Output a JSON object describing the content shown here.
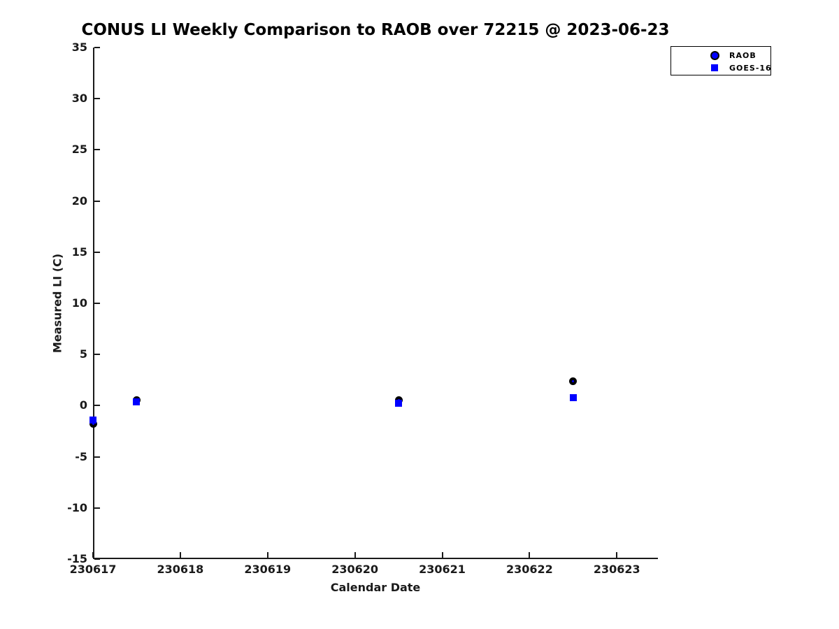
{
  "chart": {
    "title": "CONUS LI Weekly Comparison to RAOB over 72215 @ 2023-06-23",
    "xlabel": "Calendar Date",
    "ylabel": "Measured LI (C)"
  },
  "legend": {
    "entries": [
      {
        "label": "RAOB",
        "marker": "circle-icon"
      },
      {
        "label": "GOES-16",
        "marker": "square-icon"
      }
    ]
  },
  "colors": {
    "marker_fill": "#0000ff",
    "marker_edge": "#000000",
    "axis": "#1a1a1a",
    "text": "#000000"
  },
  "chart_data": {
    "type": "scatter",
    "title": "CONUS LI Weekly Comparison to RAOB over 72215 @ 2023-06-23",
    "xlabel": "Calendar Date",
    "ylabel": "Measured LI (C)",
    "xlim": [
      230617,
      230623.47
    ],
    "ylim": [
      -15,
      35
    ],
    "xticks": [
      230617,
      230618,
      230619,
      230620,
      230621,
      230622,
      230623
    ],
    "yticks": [
      -15,
      -10,
      -5,
      0,
      5,
      10,
      15,
      20,
      25,
      30,
      35
    ],
    "grid": false,
    "legend_position": "top-right",
    "series": [
      {
        "name": "RAOB",
        "marker": "circle",
        "face": "#0000ff",
        "edge": "#000000",
        "points": [
          [
            230617.0,
            -1.8
          ],
          [
            230617.5,
            0.55
          ],
          [
            230620.5,
            0.55
          ],
          [
            230622.5,
            2.35
          ]
        ]
      },
      {
        "name": "GOES-16",
        "marker": "square",
        "face": "#0000ff",
        "edge": "#000000",
        "points": [
          [
            230617.0,
            -1.4
          ],
          [
            230617.5,
            0.35
          ],
          [
            230620.5,
            0.2
          ],
          [
            230622.5,
            0.75
          ]
        ]
      }
    ]
  }
}
